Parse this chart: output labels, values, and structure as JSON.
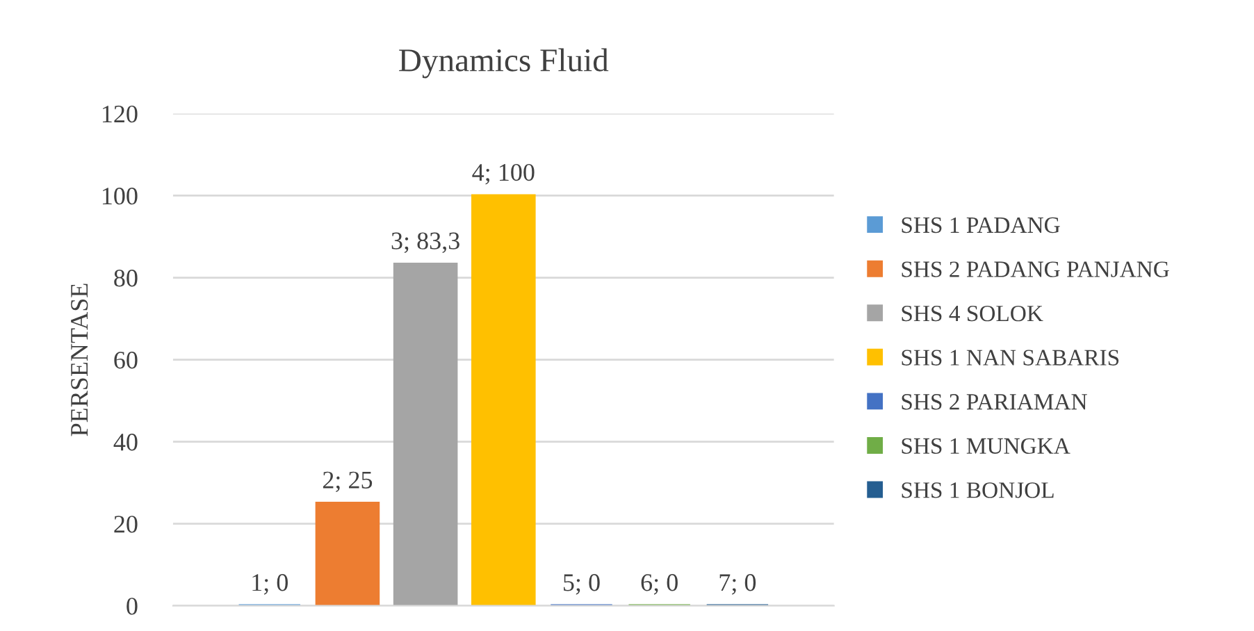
{
  "chart_data": {
    "type": "bar",
    "title": "Dynamics Fluid",
    "ylabel": "PERSENTASE",
    "categories": [
      null
    ],
    "series": [
      {
        "name": "SHS 1 PADANG",
        "color": "#5b9bd5",
        "values": [
          0
        ],
        "value_labels": [
          "1; 0"
        ]
      },
      {
        "name": "SHS 2 PADANG PANJANG",
        "color": "#ed7d31",
        "values": [
          25
        ],
        "value_labels": [
          "2; 25"
        ]
      },
      {
        "name": "SHS 4 SOLOK",
        "color": "#a5a5a5",
        "values": [
          83.3
        ],
        "value_labels": [
          "3; 83,3"
        ]
      },
      {
        "name": "SHS 1 NAN SABARIS",
        "color": "#ffc000",
        "values": [
          100
        ],
        "value_labels": [
          "4; 100"
        ]
      },
      {
        "name": "SHS 2 PARIAMAN",
        "color": "#4472c4",
        "values": [
          0
        ],
        "value_labels": [
          "5; 0"
        ]
      },
      {
        "name": "SHS 1 MUNGKA",
        "color": "#70ad47",
        "values": [
          0
        ],
        "value_labels": [
          "6; 0"
        ]
      },
      {
        "name": "SHS 1 BONJOL",
        "color": "#255e91",
        "values": [
          0
        ],
        "value_labels": [
          "7; 0"
        ]
      }
    ],
    "ylim": [
      0,
      120
    ],
    "yticks": [
      0,
      20,
      40,
      60,
      80,
      100,
      120
    ],
    "grid": "y",
    "legend": "right"
  }
}
